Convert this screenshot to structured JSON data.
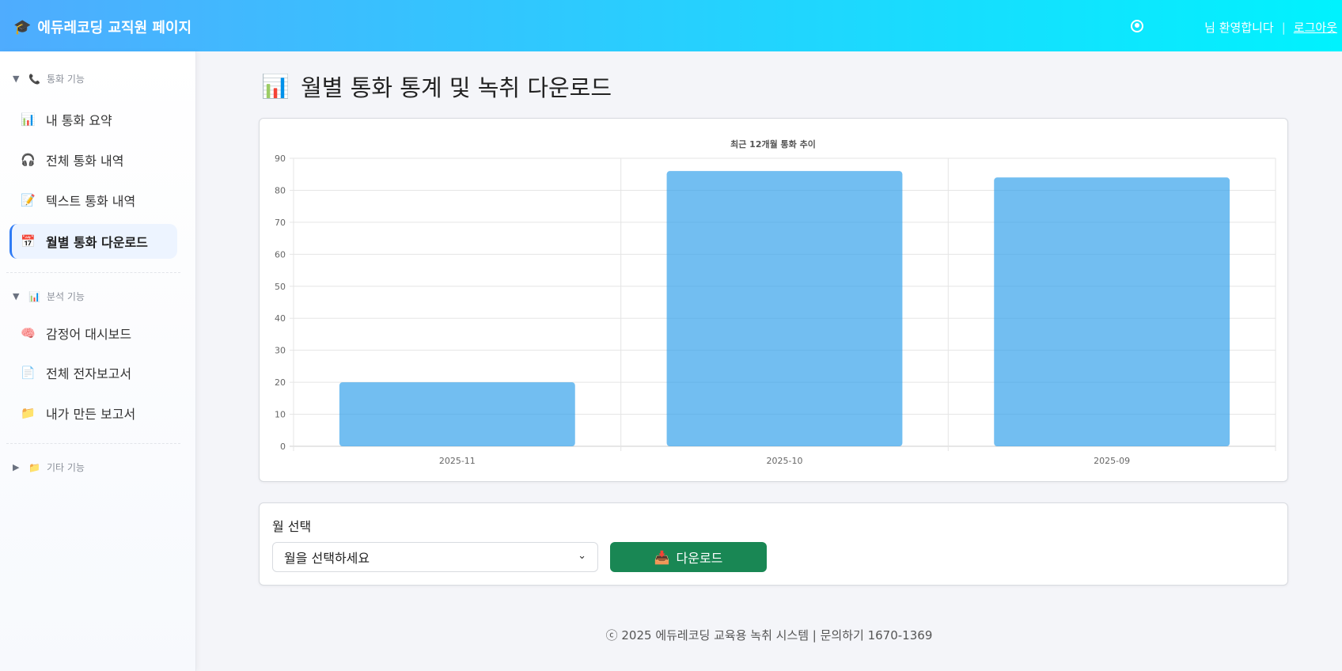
{
  "header": {
    "brand_icon": "graduation-cap-icon",
    "title": "에듀레코딩 교직원 페이지",
    "welcome": "님 환영합니다",
    "separator": "|",
    "logout": "로그아웃"
  },
  "sidebar": {
    "sections": [
      {
        "label": "통화 기능",
        "icon": "phone-icon",
        "expanded": true,
        "items": [
          {
            "label": "내 통화 요약",
            "icon": "bar-chart-icon"
          },
          {
            "label": "전체 통화 내역",
            "icon": "headphones-icon"
          },
          {
            "label": "텍스트 통화 내역",
            "icon": "memo-icon"
          },
          {
            "label": "월별 통화 다운로드",
            "icon": "calendar-icon",
            "active": true
          }
        ]
      },
      {
        "label": "분석 기능",
        "icon": "bar-chart-icon",
        "expanded": true,
        "items": [
          {
            "label": "감정어 대시보드",
            "icon": "brain-icon"
          },
          {
            "label": "전체 전자보고서",
            "icon": "document-icon"
          },
          {
            "label": "내가 만든 보고서",
            "icon": "folder-icon"
          }
        ]
      },
      {
        "label": "기타 기능",
        "icon": "folder-icon",
        "expanded": false,
        "items": []
      }
    ]
  },
  "main": {
    "title": "월별 통화 통계 및 녹취 다운로드",
    "title_icon": "bar-chart-icon"
  },
  "chart_data": {
    "type": "bar",
    "title": "최근 12개월 통화 추이",
    "categories": [
      "2025-11",
      "2025-10",
      "2025-09"
    ],
    "values": [
      20,
      86,
      84
    ],
    "ylim": [
      0,
      90
    ],
    "yticks": [
      0,
      10,
      20,
      30,
      40,
      50,
      60,
      70,
      80,
      90
    ],
    "grid": true,
    "color": "#36a2eb"
  },
  "form": {
    "label": "월 선택",
    "select_placeholder": "월을 선택하세요",
    "download_label": "다운로드",
    "download_icon": "inbox-tray-icon",
    "button_color": "#198754"
  },
  "footer": {
    "text": "ⓒ 2025 에듀레코딩 교육용 녹취 시스템 | 문의하기 1670-1369"
  }
}
